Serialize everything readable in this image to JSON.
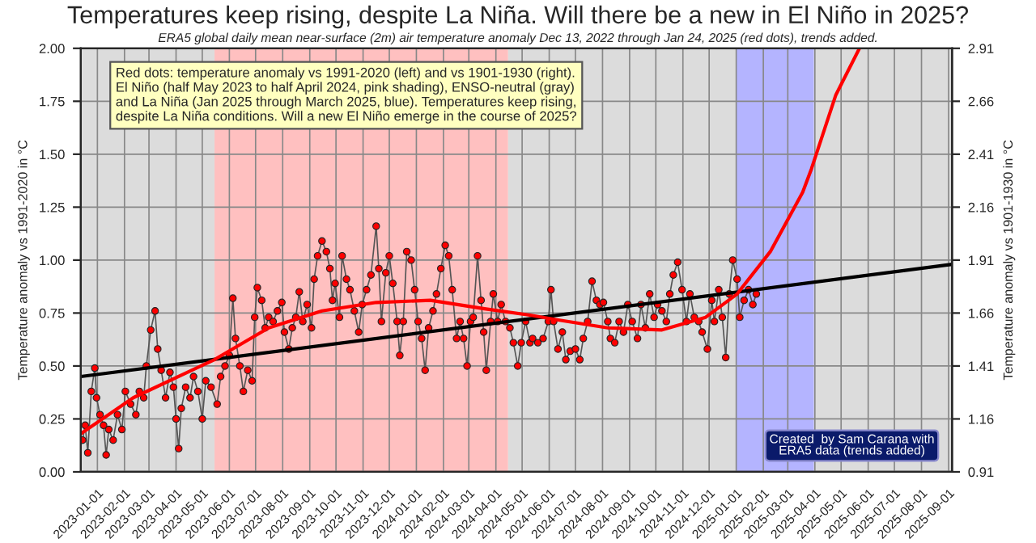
{
  "chart_data": {
    "type": "line",
    "title": "Temperatures keep rising, despite La Niña. Will there be a new in El Niño in 2025?",
    "subtitle": "ERA5 global daily mean near-surface (2m) air temperature anomaly Dec 13, 2022 through Jan 24, 2025 (red dots), trends added.",
    "ylabel": "Temperature anomaly vs 1991-2020 in °C",
    "y2label": "Temperature anomaly vs 1901-1930 in °C",
    "annotations": [
      "Red dots: temperature anomaly vs 1991-2020 (left) and vs 1901-1930 (right).\nEl Niño (half May 2023 to half April 2024, pink shading), ENSO-neutral (gray)\nand La Niña (Jan 2025 through March 2025, blue). Temperatures keep rising,\ndespite La Niña conditions. Will a new El Niño emerge in the course of 2025?",
      "Created  by Sam Carana with\nERA5 data (trends added)"
    ],
    "xlim": [
      "2022-12-13",
      "2025-09-05"
    ],
    "xticks": [
      "2023-01-01",
      "2023-02-01",
      "2023-03-01",
      "2023-04-01",
      "2023-05-01",
      "2023-06-01",
      "2023-07-01",
      "2023-08-01",
      "2023-09-01",
      "2023-10-01",
      "2023-11-01",
      "2023-12-01",
      "2024-01-01",
      "2024-02-01",
      "2024-03-01",
      "2024-04-01",
      "2024-05-01",
      "2024-06-01",
      "2024-07-01",
      "2024-08-01",
      "2024-09-01",
      "2024-10-01",
      "2024-11-01",
      "2024-12-01",
      "2025-01-01",
      "2025-02-01",
      "2025-03-01",
      "2025-04-01",
      "2025-05-01",
      "2025-06-01",
      "2025-07-01",
      "2025-08-01",
      "2025-09-01"
    ],
    "ylim": [
      0,
      2
    ],
    "yticks": [
      {
        "value": 0,
        "label": "0.00"
      },
      {
        "value": 0.25,
        "label": "0.25"
      },
      {
        "value": 0.5,
        "label": "0.50"
      },
      {
        "value": 0.75,
        "label": "0.75"
      },
      {
        "value": 1,
        "label": "1.00"
      },
      {
        "value": 1.25,
        "label": "1.25"
      },
      {
        "value": 1.5,
        "label": "1.50"
      },
      {
        "value": 1.75,
        "label": "1.75"
      },
      {
        "value": 2,
        "label": "2.00"
      }
    ],
    "y2lim": [
      0.91,
      2.91
    ],
    "y2ticks": [
      0.91,
      1.16,
      1.41,
      1.66,
      1.91,
      2.16,
      2.41,
      2.66,
      2.91
    ],
    "grid": true,
    "bands": [
      {
        "axis": "x",
        "from": "2022-12-13",
        "to": "2023-05-15",
        "color": "#dcdcdc"
      },
      {
        "axis": "x",
        "from": "2023-05-15",
        "to": "2024-04-15",
        "color": "#ffc0c0"
      },
      {
        "axis": "x",
        "from": "2024-04-15",
        "to": "2025-01-01",
        "color": "#dcdcdc"
      },
      {
        "axis": "x",
        "from": "2025-01-01",
        "to": "2025-03-31",
        "color": "#b4b4ff"
      },
      {
        "axis": "x",
        "from": "2025-03-31",
        "to": "2025-09-05",
        "color": "#dcdcdc"
      }
    ],
    "series": [
      {
        "color": "#ff0000",
        "marker": "circle",
        "x": [
          "2022-12-15",
          "2022-12-18",
          "2022-12-21",
          "2022-12-25",
          "2022-12-29",
          "2022-12-31",
          "2023-01-04",
          "2023-01-08",
          "2023-01-11",
          "2023-01-14",
          "2023-01-19",
          "2023-01-24",
          "2023-01-29",
          "2023-02-02",
          "2023-02-08",
          "2023-02-14",
          "2023-02-18",
          "2023-02-23",
          "2023-02-26",
          "2023-03-03",
          "2023-03-08",
          "2023-03-11",
          "2023-03-15",
          "2023-03-20",
          "2023-03-25",
          "2023-03-29",
          "2023-04-01",
          "2023-04-04",
          "2023-04-07",
          "2023-04-12",
          "2023-04-17",
          "2023-04-21",
          "2023-04-26",
          "2023-05-01",
          "2023-05-05",
          "2023-05-11",
          "2023-05-18",
          "2023-05-22",
          "2023-05-27",
          "2023-06-01",
          "2023-06-05",
          "2023-06-08",
          "2023-06-13",
          "2023-06-17",
          "2023-06-22",
          "2023-06-27",
          "2023-06-30",
          "2023-07-03",
          "2023-07-08",
          "2023-07-12",
          "2023-07-16",
          "2023-07-21",
          "2023-07-26",
          "2023-07-31",
          "2023-08-03",
          "2023-08-08",
          "2023-08-12",
          "2023-08-16",
          "2023-08-20",
          "2023-08-24",
          "2023-08-29",
          "2023-09-03",
          "2023-09-06",
          "2023-09-10",
          "2023-09-15",
          "2023-09-20",
          "2023-09-24",
          "2023-09-27",
          "2023-09-30",
          "2023-10-05",
          "2023-10-08",
          "2023-10-13",
          "2023-10-17",
          "2023-10-22",
          "2023-10-27",
          "2023-10-31",
          "2023-11-05",
          "2023-11-10",
          "2023-11-16",
          "2023-11-19",
          "2023-11-22",
          "2023-11-27",
          "2023-12-01",
          "2023-12-05",
          "2023-12-10",
          "2023-12-13",
          "2023-12-17",
          "2023-12-21",
          "2023-12-26",
          "2023-12-30",
          "2024-01-03",
          "2024-01-07",
          "2024-01-11",
          "2024-01-15",
          "2024-01-20",
          "2024-01-24",
          "2024-01-29",
          "2024-02-03",
          "2024-02-07",
          "2024-02-11",
          "2024-02-16",
          "2024-02-20",
          "2024-02-24",
          "2024-02-28",
          "2024-03-03",
          "2024-03-06",
          "2024-03-11",
          "2024-03-15",
          "2024-03-18",
          "2024-03-21",
          "2024-03-26",
          "2024-03-29",
          "2024-04-03",
          "2024-04-07",
          "2024-04-12",
          "2024-04-17",
          "2024-04-21",
          "2024-04-26",
          "2024-04-30",
          "2024-05-05",
          "2024-05-10",
          "2024-05-13",
          "2024-05-19",
          "2024-05-25",
          "2024-05-31",
          "2024-06-03",
          "2024-06-06",
          "2024-06-11",
          "2024-06-16",
          "2024-06-20",
          "2024-06-25",
          "2024-07-01",
          "2024-07-06",
          "2024-07-10",
          "2024-07-15",
          "2024-07-20",
          "2024-07-25",
          "2024-07-29",
          "2024-08-02",
          "2024-08-07",
          "2024-08-10",
          "2024-08-15",
          "2024-08-20",
          "2024-08-25",
          "2024-08-30",
          "2024-09-04",
          "2024-09-10",
          "2024-09-14",
          "2024-09-19",
          "2024-09-24",
          "2024-09-29",
          "2024-10-03",
          "2024-10-08",
          "2024-10-13",
          "2024-10-17",
          "2024-10-21",
          "2024-10-26",
          "2024-10-31",
          "2024-11-05",
          "2024-11-09",
          "2024-11-14",
          "2024-11-19",
          "2024-11-23",
          "2024-11-29",
          "2024-12-04",
          "2024-12-07",
          "2024-12-12",
          "2024-12-16",
          "2024-12-20",
          "2024-12-24",
          "2024-12-28",
          "2025-01-02",
          "2025-01-05",
          "2025-01-10",
          "2025-01-15",
          "2025-01-20",
          "2025-01-24"
        ],
        "values": [
          0.15,
          0.22,
          0.09,
          0.38,
          0.49,
          0.35,
          0.27,
          0.22,
          0.08,
          0.2,
          0.15,
          0.27,
          0.2,
          0.38,
          0.32,
          0.27,
          0.38,
          0.35,
          0.5,
          0.67,
          0.76,
          0.58,
          0.48,
          0.35,
          0.47,
          0.4,
          0.25,
          0.11,
          0.3,
          0.4,
          0.35,
          0.45,
          0.38,
          0.25,
          0.43,
          0.4,
          0.32,
          0.45,
          0.5,
          0.55,
          0.82,
          0.63,
          0.5,
          0.38,
          0.48,
          0.43,
          0.73,
          0.87,
          0.81,
          0.68,
          0.73,
          0.71,
          0.76,
          0.8,
          0.66,
          0.58,
          0.68,
          0.73,
          0.85,
          0.71,
          0.79,
          0.68,
          0.91,
          1.02,
          1.09,
          1.04,
          0.96,
          0.81,
          0.89,
          0.73,
          1.02,
          0.91,
          0.86,
          0.76,
          0.66,
          0.79,
          0.86,
          0.93,
          1.16,
          0.96,
          0.71,
          0.94,
          1.02,
          0.89,
          0.71,
          0.55,
          0.71,
          1.04,
          1.0,
          0.86,
          0.71,
          0.63,
          0.48,
          0.68,
          0.76,
          0.84,
          0.96,
          1.07,
          1.02,
          0.86,
          0.63,
          0.71,
          0.63,
          0.5,
          0.71,
          0.73,
          1.02,
          0.81,
          0.66,
          0.48,
          0.71,
          0.84,
          0.71,
          0.79,
          0.71,
          0.68,
          0.61,
          0.5,
          0.61,
          0.71,
          0.61,
          0.63,
          0.61,
          0.63,
          0.71,
          0.86,
          0.71,
          0.58,
          0.66,
          0.53,
          0.57,
          0.58,
          0.53,
          0.63,
          0.71,
          0.9,
          0.81,
          0.79,
          0.8,
          0.71,
          0.63,
          0.61,
          0.71,
          0.66,
          0.79,
          0.71,
          0.63,
          0.79,
          0.68,
          0.84,
          0.73,
          0.79,
          0.76,
          0.71,
          0.84,
          0.93,
          0.99,
          0.86,
          0.71,
          0.84,
          0.73,
          0.71,
          0.66,
          0.58,
          0.81,
          0.71,
          0.86,
          0.73,
          0.54,
          0.84,
          1.0,
          0.91,
          0.73,
          0.81,
          0.86,
          0.79,
          0.84
        ]
      },
      {
        "color": "#000000",
        "x": [
          "2022-12-13",
          "2025-09-05"
        ],
        "values": [
          0.45,
          0.98
        ]
      },
      {
        "color": "#ff0000",
        "x": [
          "2022-12-13",
          "2023-02-11",
          "2023-05-15",
          "2023-07-16",
          "2023-09-15",
          "2023-11-16",
          "2024-01-17",
          "2024-03-19",
          "2024-05-10",
          "2024-06-07",
          "2024-08-07",
          "2024-10-08",
          "2024-11-27",
          "2025-01-02",
          "2025-02-09",
          "2025-03-18",
          "2025-03-28",
          "2025-04-25",
          "2025-05-22"
        ],
        "values": [
          0.18,
          0.35,
          0.53,
          0.68,
          0.76,
          0.8,
          0.81,
          0.77,
          0.74,
          0.72,
          0.68,
          0.67,
          0.73,
          0.84,
          1.04,
          1.32,
          1.43,
          1.78,
          2.0
        ]
      }
    ]
  }
}
